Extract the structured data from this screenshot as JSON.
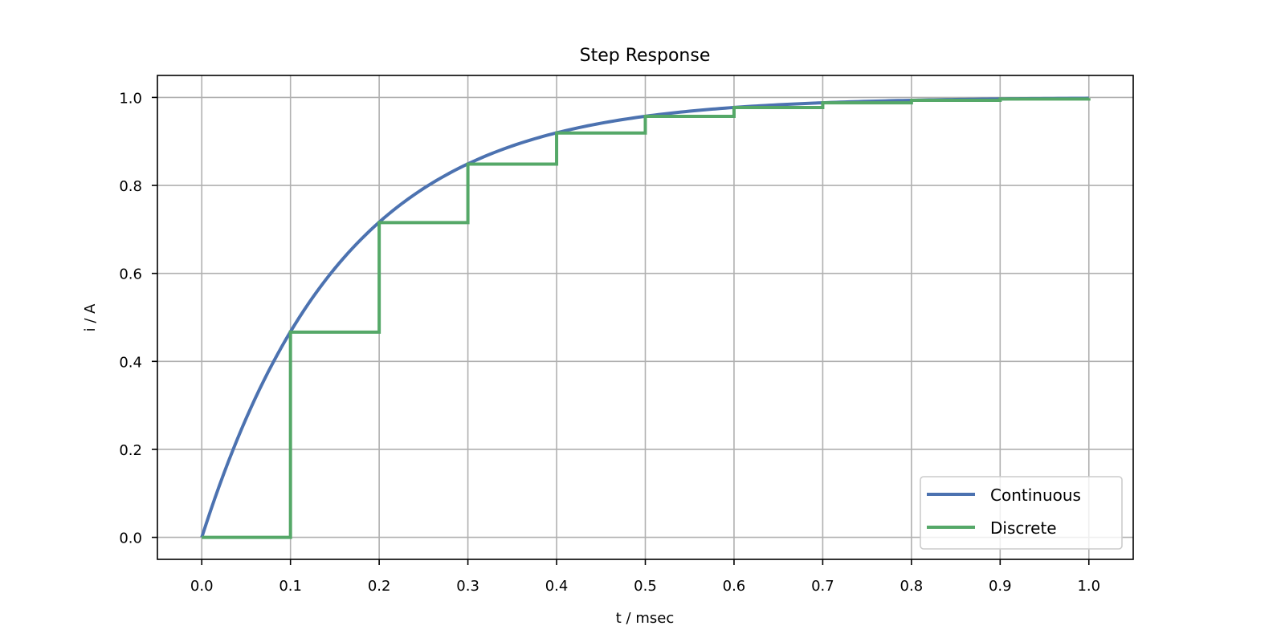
{
  "chart_data": {
    "type": "line",
    "title": "Step Response",
    "xlabel": "t / msec",
    "ylabel": "i / A",
    "xlim": [
      -0.05,
      1.05
    ],
    "ylim": [
      -0.05,
      1.05
    ],
    "xticks": [
      0.0,
      0.1,
      0.2,
      0.3,
      0.4,
      0.5,
      0.6,
      0.7,
      0.8,
      0.9,
      1.0
    ],
    "xtick_labels": [
      "0.0",
      "0.1",
      "0.2",
      "0.3",
      "0.4",
      "0.5",
      "0.6",
      "0.7",
      "0.8",
      "0.9",
      "1.0"
    ],
    "yticks": [
      0.0,
      0.2,
      0.4,
      0.6,
      0.8,
      1.0
    ],
    "ytick_labels": [
      "0.0",
      "0.2",
      "0.4",
      "0.6",
      "0.8",
      "1.0"
    ],
    "grid": true,
    "legend_position": "lower right",
    "series": [
      {
        "name": "Continuous",
        "color": "#4c72b0",
        "style": "line",
        "formula": "1 - exp(-t / 0.1587)",
        "x": [
          0.0,
          0.1,
          0.2,
          0.3,
          0.4,
          0.5,
          0.6,
          0.7,
          0.8,
          0.9,
          1.0
        ],
        "values": [
          0.0,
          0.4665,
          0.7155,
          0.8484,
          0.9192,
          0.957,
          0.9771,
          0.9878,
          0.9935,
          0.9965,
          0.9982
        ]
      },
      {
        "name": "Discrete",
        "color": "#55a868",
        "style": "steps-post",
        "x": [
          0.0,
          0.1,
          0.2,
          0.3,
          0.4,
          0.5,
          0.6,
          0.7,
          0.8,
          0.9,
          1.0
        ],
        "values": [
          0.0,
          0.4665,
          0.7155,
          0.8484,
          0.9192,
          0.957,
          0.9771,
          0.9878,
          0.9935,
          0.9965,
          0.9982
        ]
      }
    ]
  }
}
